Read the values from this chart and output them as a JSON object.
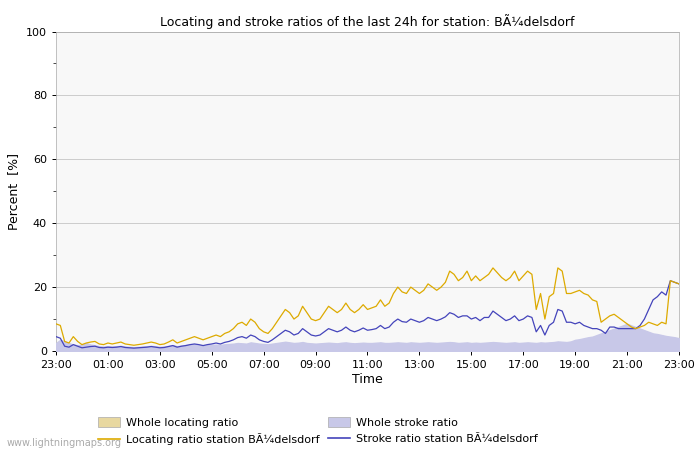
{
  "title": "Locating and stroke ratios of the last 24h for station: BÃ¼delsdorf",
  "xlabel": "Time",
  "ylabel": "Percent  [%]",
  "ylim": [
    0,
    100
  ],
  "yticks": [
    0,
    20,
    40,
    60,
    80,
    100
  ],
  "ytick_minor": [
    10,
    30,
    50,
    70,
    90
  ],
  "time_labels": [
    "23:00",
    "01:00",
    "03:00",
    "05:00",
    "07:00",
    "09:00",
    "11:00",
    "13:00",
    "15:00",
    "17:00",
    "19:00",
    "21:00",
    "23:00"
  ],
  "n_points": 145,
  "locating_station_color": "#ddaa00",
  "stroke_station_color": "#4444bb",
  "whole_locating_color": "#e8d8a0",
  "whole_stroke_color": "#c8c8e8",
  "background_color": "#ffffff",
  "plot_bg_color": "#f8f8f8",
  "grid_color": "#cccccc",
  "watermark": "www.lightningmaps.org",
  "legend_labels": [
    "Whole locating ratio",
    "Locating ratio station BÃ¼delsdorf",
    "Whole stroke ratio",
    "Stroke ratio station BÃ¼delsdorf"
  ],
  "whole_locating": [
    1.5,
    2.5,
    1.8,
    1.2,
    1.0,
    0.8,
    1.5,
    2.0,
    1.5,
    1.2,
    0.9,
    0.8,
    1.0,
    0.9,
    1.0,
    1.2,
    0.9,
    0.8,
    0.7,
    0.8,
    0.9,
    1.0,
    1.2,
    1.0,
    0.8,
    0.9,
    1.1,
    1.3,
    1.0,
    1.2,
    1.4,
    1.5,
    1.6,
    1.4,
    1.2,
    1.3,
    1.4,
    1.5,
    1.4,
    1.6,
    1.7,
    1.8,
    2.0,
    1.9,
    1.8,
    2.2,
    2.0,
    1.8,
    1.7,
    1.6,
    1.8,
    2.0,
    2.2,
    2.4,
    2.2,
    2.0,
    2.1,
    2.3,
    2.0,
    1.9,
    1.8,
    1.9,
    2.0,
    2.1,
    2.0,
    1.9,
    2.1,
    2.2,
    2.0,
    1.9,
    2.0,
    2.1,
    2.0,
    2.0,
    2.1,
    2.2,
    2.0,
    2.0,
    2.1,
    2.2,
    2.1,
    2.0,
    2.2,
    2.1,
    2.0,
    2.1,
    2.2,
    2.1,
    2.0,
    2.1,
    2.2,
    2.3,
    2.2,
    2.0,
    2.1,
    2.2,
    2.0,
    2.1,
    2.0,
    2.1,
    2.2,
    2.3,
    2.2,
    2.1,
    2.0,
    2.1,
    2.2,
    2.0,
    2.1,
    2.2,
    2.1,
    2.0,
    2.2,
    2.1,
    2.2,
    2.3,
    2.5,
    2.4,
    2.3,
    2.5,
    3.0,
    3.2,
    3.5,
    3.8,
    4.0,
    4.5,
    5.0,
    5.5,
    6.0,
    6.5,
    7.0,
    7.5,
    8.0,
    7.5,
    7.0,
    6.5,
    6.0,
    5.5,
    5.0,
    4.8,
    4.5,
    4.2,
    4.0,
    3.8,
    3.5
  ],
  "whole_stroke": [
    2.5,
    3.5,
    3.0,
    2.5,
    2.0,
    1.8,
    2.0,
    2.5,
    2.0,
    1.8,
    1.5,
    1.4,
    1.5,
    1.4,
    1.5,
    1.6,
    1.4,
    1.3,
    1.2,
    1.3,
    1.4,
    1.5,
    1.6,
    1.5,
    1.3,
    1.4,
    1.6,
    1.8,
    1.5,
    1.7,
    1.9,
    2.0,
    2.1,
    1.9,
    1.7,
    1.8,
    1.9,
    2.0,
    1.9,
    2.1,
    2.2,
    2.3,
    2.5,
    2.4,
    2.3,
    2.7,
    2.5,
    2.3,
    2.2,
    2.1,
    2.3,
    2.5,
    2.7,
    2.9,
    2.7,
    2.5,
    2.6,
    2.8,
    2.5,
    2.4,
    2.3,
    2.4,
    2.5,
    2.6,
    2.5,
    2.4,
    2.6,
    2.7,
    2.5,
    2.4,
    2.5,
    2.6,
    2.5,
    2.5,
    2.6,
    2.7,
    2.5,
    2.5,
    2.6,
    2.7,
    2.6,
    2.5,
    2.7,
    2.6,
    2.5,
    2.6,
    2.7,
    2.6,
    2.5,
    2.6,
    2.7,
    2.8,
    2.7,
    2.5,
    2.6,
    2.7,
    2.5,
    2.6,
    2.5,
    2.6,
    2.7,
    2.8,
    2.7,
    2.6,
    2.5,
    2.6,
    2.7,
    2.5,
    2.6,
    2.7,
    2.6,
    2.5,
    2.7,
    2.6,
    2.7,
    2.8,
    3.0,
    2.9,
    2.8,
    3.0,
    3.5,
    3.7,
    4.0,
    4.3,
    4.5,
    5.0,
    5.5,
    6.0,
    6.5,
    7.0,
    7.5,
    8.0,
    8.5,
    8.0,
    7.5,
    7.0,
    6.5,
    6.0,
    5.5,
    5.3,
    5.0,
    4.7,
    4.5,
    4.3,
    4.0
  ],
  "locating_station": [
    8.5,
    8.0,
    3.0,
    2.5,
    4.5,
    3.0,
    2.0,
    2.5,
    2.8,
    3.0,
    2.2,
    2.0,
    2.5,
    2.2,
    2.5,
    2.8,
    2.2,
    2.0,
    1.8,
    2.0,
    2.2,
    2.5,
    2.8,
    2.5,
    2.0,
    2.2,
    2.8,
    3.5,
    2.5,
    3.0,
    3.5,
    4.0,
    4.5,
    4.0,
    3.5,
    4.0,
    4.5,
    5.0,
    4.5,
    5.5,
    6.0,
    7.0,
    8.5,
    9.0,
    8.0,
    10.0,
    9.0,
    7.0,
    6.0,
    5.5,
    7.0,
    9.0,
    11.0,
    13.0,
    12.0,
    10.0,
    11.0,
    14.0,
    12.0,
    10.0,
    9.5,
    10.0,
    12.0,
    14.0,
    13.0,
    12.0,
    13.0,
    15.0,
    13.0,
    12.0,
    13.0,
    14.5,
    13.0,
    13.5,
    14.0,
    16.0,
    14.0,
    15.0,
    18.0,
    20.0,
    18.5,
    18.0,
    20.0,
    19.0,
    18.0,
    19.0,
    21.0,
    20.0,
    19.0,
    20.0,
    21.5,
    25.0,
    24.0,
    22.0,
    23.0,
    25.0,
    22.0,
    23.5,
    22.0,
    23.0,
    24.0,
    26.0,
    24.5,
    23.0,
    22.0,
    23.0,
    25.0,
    22.0,
    23.5,
    25.0,
    24.0,
    13.0,
    18.0,
    10.0,
    17.0,
    18.0,
    26.0,
    25.0,
    18.0,
    18.0,
    18.5,
    19.0,
    18.0,
    17.5,
    16.0,
    15.5,
    9.0,
    10.0,
    11.0,
    11.5,
    10.5,
    9.5,
    8.5,
    7.5,
    7.0,
    7.5,
    8.0,
    9.0,
    8.5,
    8.0,
    9.0,
    8.5,
    22.0,
    21.5,
    21.0
  ],
  "stroke_station": [
    4.5,
    4.0,
    1.5,
    1.2,
    2.0,
    1.5,
    1.0,
    1.2,
    1.4,
    1.5,
    1.1,
    1.0,
    1.2,
    1.1,
    1.2,
    1.4,
    1.1,
    1.0,
    0.9,
    1.0,
    1.1,
    1.2,
    1.4,
    1.2,
    1.0,
    1.1,
    1.4,
    1.7,
    1.2,
    1.5,
    1.7,
    2.0,
    2.2,
    2.0,
    1.7,
    2.0,
    2.2,
    2.5,
    2.2,
    2.7,
    3.0,
    3.5,
    4.2,
    4.5,
    4.0,
    5.0,
    4.5,
    3.5,
    3.0,
    2.7,
    3.5,
    4.5,
    5.5,
    6.5,
    6.0,
    5.0,
    5.5,
    7.0,
    6.0,
    5.0,
    4.7,
    5.0,
    6.0,
    7.0,
    6.5,
    6.0,
    6.5,
    7.5,
    6.5,
    6.0,
    6.5,
    7.2,
    6.5,
    6.7,
    7.0,
    8.0,
    7.0,
    7.5,
    9.0,
    10.0,
    9.2,
    9.0,
    10.0,
    9.5,
    9.0,
    9.5,
    10.5,
    10.0,
    9.5,
    10.0,
    10.7,
    12.0,
    11.5,
    10.5,
    11.0,
    11.0,
    10.0,
    10.5,
    9.5,
    10.5,
    10.5,
    12.5,
    11.5,
    10.5,
    9.5,
    10.0,
    11.0,
    9.5,
    10.0,
    11.0,
    10.5,
    6.0,
    8.0,
    5.0,
    8.0,
    9.0,
    13.0,
    12.5,
    9.0,
    9.0,
    8.5,
    9.0,
    8.0,
    7.5,
    7.0,
    7.0,
    6.5,
    5.5,
    7.5,
    7.5,
    7.0,
    7.0,
    7.0,
    7.0,
    7.0,
    8.0,
    10.0,
    13.0,
    16.0,
    17.0,
    18.5,
    17.5,
    22.0,
    21.5,
    21.0
  ]
}
